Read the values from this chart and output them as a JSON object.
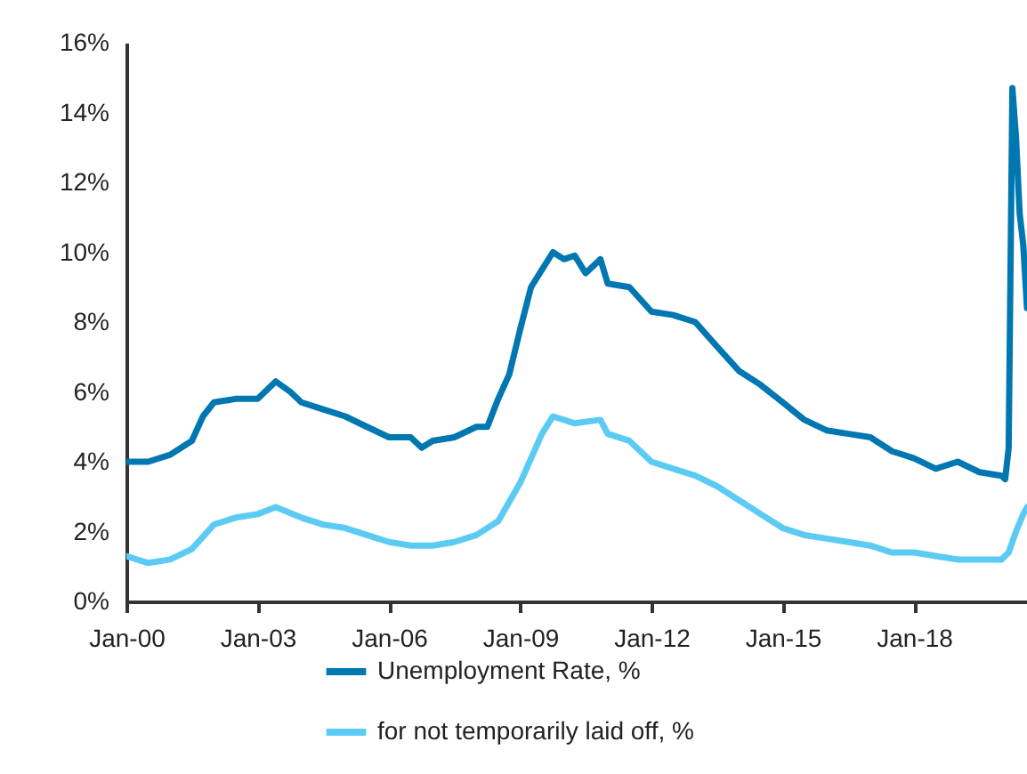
{
  "chart_data": {
    "type": "line",
    "xlim": [
      "2000-01",
      "2020-08"
    ],
    "ylim": [
      0,
      16
    ],
    "xticks": [
      {
        "value": "2000-01",
        "label": "Jan-00"
      },
      {
        "value": "2003-01",
        "label": "Jan-03"
      },
      {
        "value": "2006-01",
        "label": "Jan-06"
      },
      {
        "value": "2009-01",
        "label": "Jan-09"
      },
      {
        "value": "2012-01",
        "label": "Jan-12"
      },
      {
        "value": "2015-01",
        "label": "Jan-15"
      },
      {
        "value": "2018-01",
        "label": "Jan-18"
      }
    ],
    "yticks": [
      {
        "value": 0,
        "label": "0%"
      },
      {
        "value": 2,
        "label": "2%"
      },
      {
        "value": 4,
        "label": "4%"
      },
      {
        "value": 6,
        "label": "6%"
      },
      {
        "value": 8,
        "label": "8%"
      },
      {
        "value": 10,
        "label": "10%"
      },
      {
        "value": 12,
        "label": "12%"
      },
      {
        "value": 14,
        "label": "14%"
      },
      {
        "value": 16,
        "label": "16%"
      }
    ],
    "grid": false,
    "legend": "bottom",
    "marker": "none",
    "line_style": "solid",
    "series": [
      {
        "name": "Unemployment Rate, %",
        "color": "#0077b0",
        "x": [
          "2000-01",
          "2000-07",
          "2001-01",
          "2001-07",
          "2001-10",
          "2002-01",
          "2002-07",
          "2003-01",
          "2003-06",
          "2003-10",
          "2004-01",
          "2004-07",
          "2005-01",
          "2005-07",
          "2006-01",
          "2006-07",
          "2006-10",
          "2007-01",
          "2007-07",
          "2008-01",
          "2008-04",
          "2008-07",
          "2008-10",
          "2009-01",
          "2009-04",
          "2009-07",
          "2009-10",
          "2010-01",
          "2010-04",
          "2010-07",
          "2010-11",
          "2011-01",
          "2011-07",
          "2012-01",
          "2012-07",
          "2013-01",
          "2013-07",
          "2014-01",
          "2014-07",
          "2015-01",
          "2015-07",
          "2016-01",
          "2016-07",
          "2017-01",
          "2017-07",
          "2018-01",
          "2018-07",
          "2019-01",
          "2019-07",
          "2020-01",
          "2020-02",
          "2020-03",
          "2020-04",
          "2020-05",
          "2020-06",
          "2020-07",
          "2020-08"
        ],
        "values": [
          4.0,
          4.0,
          4.2,
          4.6,
          5.3,
          5.7,
          5.8,
          5.8,
          6.3,
          6.0,
          5.7,
          5.5,
          5.3,
          5.0,
          4.7,
          4.7,
          4.4,
          4.6,
          4.7,
          5.0,
          5.0,
          5.8,
          6.5,
          7.8,
          9.0,
          9.5,
          10.0,
          9.8,
          9.9,
          9.4,
          9.8,
          9.1,
          9.0,
          8.3,
          8.2,
          8.0,
          7.3,
          6.6,
          6.2,
          5.7,
          5.2,
          4.9,
          4.8,
          4.7,
          4.3,
          4.1,
          3.8,
          4.0,
          3.7,
          3.6,
          3.5,
          4.4,
          14.7,
          13.3,
          11.1,
          10.2,
          8.4
        ]
      },
      {
        "name": "for not temporarily laid off, %",
        "color": "#5ccbf3",
        "x": [
          "2000-01",
          "2000-07",
          "2001-01",
          "2001-07",
          "2002-01",
          "2002-07",
          "2003-01",
          "2003-06",
          "2004-01",
          "2004-07",
          "2005-01",
          "2005-07",
          "2006-01",
          "2006-07",
          "2007-01",
          "2007-07",
          "2008-01",
          "2008-07",
          "2009-01",
          "2009-07",
          "2009-10",
          "2010-04",
          "2010-11",
          "2011-01",
          "2011-07",
          "2012-01",
          "2012-07",
          "2013-01",
          "2013-07",
          "2014-01",
          "2014-07",
          "2015-01",
          "2015-07",
          "2016-01",
          "2016-07",
          "2017-01",
          "2017-07",
          "2018-01",
          "2018-07",
          "2019-01",
          "2019-07",
          "2020-01",
          "2020-03",
          "2020-05",
          "2020-07",
          "2020-08"
        ],
        "values": [
          1.3,
          1.1,
          1.2,
          1.5,
          2.2,
          2.4,
          2.5,
          2.7,
          2.4,
          2.2,
          2.1,
          1.9,
          1.7,
          1.6,
          1.6,
          1.7,
          1.9,
          2.3,
          3.4,
          4.8,
          5.3,
          5.1,
          5.2,
          4.8,
          4.6,
          4.0,
          3.8,
          3.6,
          3.3,
          2.9,
          2.5,
          2.1,
          1.9,
          1.8,
          1.7,
          1.6,
          1.4,
          1.4,
          1.3,
          1.2,
          1.2,
          1.2,
          1.4,
          2.0,
          2.5,
          2.7
        ]
      }
    ]
  }
}
